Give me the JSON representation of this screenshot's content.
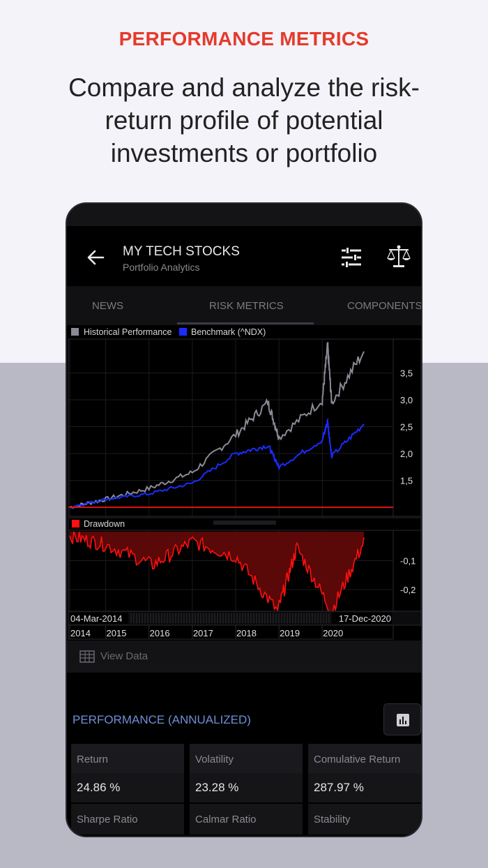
{
  "promo": {
    "headline": "PERFORMANCE METRICS",
    "subline": "Compare and analyze the risk-return profile of potential investments or portfolio"
  },
  "appbar": {
    "title": "MY TECH STOCKS",
    "subtitle": "Portfolio Analytics",
    "icons": [
      "back-arrow-icon",
      "filter-sliders-icon",
      "balance-scale-icon"
    ]
  },
  "tabs": [
    {
      "label": "NEWS",
      "active": false
    },
    {
      "label": "RISK METRICS",
      "active": true
    },
    {
      "label": "COMPONENTS",
      "active": false
    }
  ],
  "colors": {
    "accent": "#e53a2a",
    "historical": "#8a8a96",
    "benchmark": "#1a2cff",
    "drawdown": "#ff1010",
    "perf_title": "#6f8fd6"
  },
  "chart_data": [
    {
      "type": "line",
      "series": [
        {
          "name": "Historical Performance",
          "x": [
            "2014-03-04",
            "2015-01-01",
            "2016-01-01",
            "2017-01-01",
            "2018-01-01",
            "2018-10-01",
            "2019-01-01",
            "2020-01-01",
            "2020-02-15",
            "2020-03-20",
            "2020-12-17"
          ],
          "values": [
            1.0,
            1.15,
            1.35,
            1.65,
            2.35,
            2.95,
            2.3,
            3.0,
            4.0,
            2.95,
            3.9
          ]
        },
        {
          "name": "Benchmark (^NDX)",
          "x": [
            "2014-03-04",
            "2015-01-01",
            "2016-01-01",
            "2017-01-01",
            "2018-01-01",
            "2018-10-01",
            "2019-01-01",
            "2020-01-01",
            "2020-02-15",
            "2020-03-20",
            "2020-12-17"
          ],
          "values": [
            1.0,
            1.15,
            1.25,
            1.45,
            2.0,
            2.15,
            1.75,
            2.25,
            2.6,
            1.95,
            2.55
          ]
        }
      ],
      "y_ticks": [
        "3,5",
        "3,0",
        "2,5",
        "2,0",
        "1,5"
      ],
      "ylim": [
        1.0,
        4.0
      ]
    },
    {
      "type": "area",
      "series": [
        {
          "name": "Drawdown",
          "x": [
            "2014-03-04",
            "2015-01-01",
            "2016-02-01",
            "2017-01-01",
            "2018-01-01",
            "2018-12-20",
            "2019-06-01",
            "2020-03-20",
            "2020-12-17"
          ],
          "values": [
            0.0,
            -0.03,
            -0.1,
            -0.02,
            -0.07,
            -0.26,
            -0.04,
            -0.26,
            -0.02
          ]
        }
      ],
      "y_ticks": [
        "-0,1",
        "-0,2"
      ],
      "ylim": [
        -0.27,
        0.0
      ]
    }
  ],
  "timeline": {
    "start_date": "04-Mar-2014",
    "end_date": "17-Dec-2020",
    "years": [
      "2014",
      "2015",
      "2016",
      "2017",
      "2018",
      "2019",
      "2020"
    ]
  },
  "view_data": {
    "label": "View Data",
    "icon": "table-icon"
  },
  "performance": {
    "title": "PERFORMANCE (ANNUALIZED)",
    "chart_button_icon": "bar-chart-icon",
    "metrics": [
      {
        "label": "Return",
        "value": "24.86 %"
      },
      {
        "label": "Volatility",
        "value": "23.28 %"
      },
      {
        "label": "Comulative Return",
        "value": "287.97 %"
      }
    ],
    "metrics_row2": [
      {
        "label": "Sharpe Ratio"
      },
      {
        "label": "Calmar Ratio"
      },
      {
        "label": "Stability"
      }
    ]
  }
}
